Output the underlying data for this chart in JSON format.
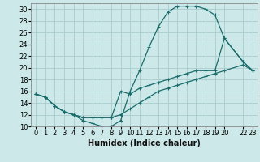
{
  "background_color": "#cce8e8",
  "grid_color": "#aacccc",
  "line_color": "#1a6b6b",
  "marker": "+",
  "xlabel": "Humidex (Indice chaleur)",
  "xlabel_fontsize": 7,
  "tick_fontsize": 6,
  "ylim": [
    10,
    31
  ],
  "yticks": [
    10,
    12,
    14,
    16,
    18,
    20,
    22,
    24,
    26,
    28,
    30
  ],
  "xlim": [
    -0.5,
    23.5
  ],
  "xtick_positions": [
    0,
    1,
    2,
    3,
    4,
    5,
    6,
    7,
    8,
    9,
    10,
    11,
    12,
    13,
    14,
    15,
    16,
    17,
    18,
    19,
    20,
    22,
    23
  ],
  "xtick_labels": [
    "0",
    "1",
    "2",
    "3",
    "4",
    "5",
    "6",
    "7",
    "8",
    "9",
    "10",
    "11",
    "12",
    "13",
    "14",
    "15",
    "16",
    "17",
    "18",
    "19",
    "20",
    "22",
    "23"
  ],
  "series1_x": [
    0,
    1,
    2,
    3,
    4,
    5,
    6,
    7,
    8,
    9,
    10,
    11,
    12,
    13,
    14,
    15,
    16,
    17,
    18,
    19,
    20,
    22,
    23
  ],
  "series1_y": [
    15.5,
    15.0,
    13.5,
    12.5,
    12.0,
    11.0,
    10.5,
    10.0,
    10.0,
    11.0,
    16.0,
    19.5,
    23.5,
    27.0,
    29.5,
    30.5,
    30.5,
    30.5,
    30.0,
    29.0,
    25.0,
    21.0,
    19.5
  ],
  "series2_x": [
    0,
    1,
    2,
    3,
    4,
    5,
    6,
    7,
    8,
    9,
    10,
    11,
    12,
    13,
    14,
    15,
    16,
    17,
    18,
    19,
    20,
    22,
    23
  ],
  "series2_y": [
    15.5,
    15.0,
    13.5,
    12.5,
    12.0,
    11.5,
    11.5,
    11.5,
    11.5,
    16.0,
    15.5,
    16.5,
    17.0,
    17.5,
    18.0,
    18.5,
    19.0,
    19.5,
    19.5,
    19.5,
    25.0,
    21.0,
    19.5
  ],
  "series3_x": [
    0,
    1,
    2,
    3,
    4,
    5,
    6,
    7,
    8,
    9,
    10,
    11,
    12,
    13,
    14,
    15,
    16,
    17,
    18,
    19,
    20,
    22,
    23
  ],
  "series3_y": [
    15.5,
    15.0,
    13.5,
    12.5,
    12.0,
    11.5,
    11.5,
    11.5,
    11.5,
    12.0,
    13.0,
    14.0,
    15.0,
    16.0,
    16.5,
    17.0,
    17.5,
    18.0,
    18.5,
    19.0,
    19.5,
    20.5,
    19.5
  ]
}
